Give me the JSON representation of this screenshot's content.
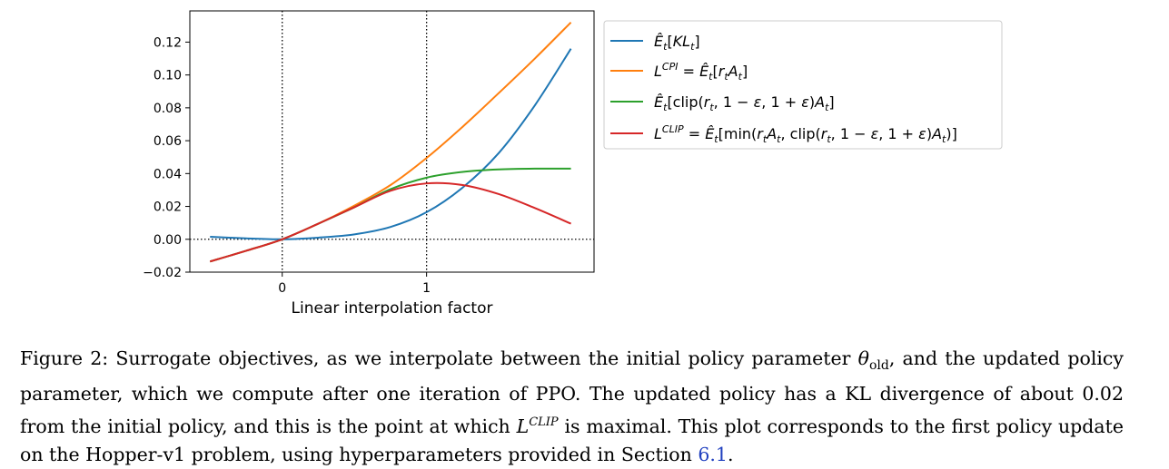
{
  "chart_data": {
    "type": "line",
    "title": "",
    "xlabel": "Linear interpolation factor",
    "ylabel": "",
    "xlim": [
      -0.64,
      2.16
    ],
    "ylim": [
      -0.02,
      0.139
    ],
    "xticks": [
      0,
      1
    ],
    "xtick_labels": [
      "0",
      "1"
    ],
    "yticks": [
      -0.02,
      0.0,
      0.02,
      0.04,
      0.06,
      0.08,
      0.1,
      0.12
    ],
    "ytick_labels": [
      "−0.02",
      "0.00",
      "0.02",
      "0.04",
      "0.06",
      "0.08",
      "0.10",
      "0.12"
    ],
    "grid": false,
    "legend_placement": "outside right, top",
    "reference_lines": [
      {
        "orientation": "vertical",
        "value": 0,
        "style": "dotted"
      },
      {
        "orientation": "vertical",
        "value": 1,
        "style": "dotted"
      },
      {
        "orientation": "horizontal",
        "value": 0,
        "style": "dotted"
      }
    ],
    "x": [
      -0.5,
      -0.25,
      0.0,
      0.25,
      0.5,
      0.75,
      1.0,
      1.25,
      1.5,
      1.75,
      2.0
    ],
    "series": [
      {
        "name": "Ê_t[KL_t]",
        "color": "#1f77b4",
        "values": [
          0.0015,
          0.0006,
          0.0,
          0.001,
          0.003,
          0.0075,
          0.0165,
          0.0315,
          0.0525,
          0.0815,
          0.116
        ]
      },
      {
        "name": "L^CPI = Ê_t[r_t A_t]",
        "color": "#ff7f0e",
        "values": [
          -0.0135,
          -0.007,
          0.0,
          0.0095,
          0.0205,
          0.033,
          0.0495,
          0.0685,
          0.089,
          0.11,
          0.132
        ]
      },
      {
        "name": "Ê_t[clip(r_t, 1 − ε, 1 + ε)A_t]",
        "color": "#2ca02c",
        "values": [
          -0.0135,
          -0.007,
          0.0,
          0.0095,
          0.0195,
          0.0305,
          0.0375,
          0.041,
          0.0425,
          0.043,
          0.043
        ]
      },
      {
        "name": "L^CLIP = Ê_t[min(r_t A_t, clip(r_t, 1 − ε, 1 + ε)A_t)]",
        "color": "#d62728",
        "values": [
          -0.0135,
          -0.007,
          0.0,
          0.0095,
          0.0195,
          0.0295,
          0.034,
          0.033,
          0.0275,
          0.019,
          0.0095
        ]
      }
    ]
  },
  "legend": {
    "kl": {
      "e": "Ê",
      "t": "t",
      "body": "[",
      "body_it": "KL",
      "close": "]"
    },
    "cpi": {
      "L": "L",
      "sup": "CPI",
      "eq": " = ",
      "e": "Ê",
      "t": "t",
      "open": "[",
      "r": "r",
      "A": "A",
      "close": "]"
    },
    "clip": {
      "e": "Ê",
      "t": "t",
      "text1": "[clip(",
      "r": "r",
      "text2": ", 1 − ",
      "eps1": "ε",
      "text3": ", 1 + ",
      "eps2": "ε",
      "text4": ")",
      "A": "A",
      "close": "]"
    },
    "lclip": {
      "L": "L",
      "sup": "CLIP",
      "eq": " = ",
      "e": "Ê",
      "t": "t",
      "text1": "[min(",
      "r": "r",
      "A": "A",
      "text2": ", clip(",
      "text3": ", 1 − ",
      "eps1": "ε",
      "text4": ", 1 + ",
      "eps2": "ε",
      "text5": ")",
      "close": ")]"
    }
  },
  "caption": {
    "p1": "Figure 2: Surrogate objectives, as we interpolate between the initial policy parameter ",
    "theta": "θ",
    "theta_sub": "old",
    "p2": ", and the updated policy parameter, which we compute after one iteration of PPO. The updated policy has a KL divergence of about 0.02 from the initial policy, and this is the point at which ",
    "L": "L",
    "L_sup": "CLIP",
    "p3": " is maximal. This plot corresponds to the first policy update on the Hopper-v1 problem, using hyperparameters provided in Section ",
    "ref": "6.1",
    "p4": "."
  }
}
